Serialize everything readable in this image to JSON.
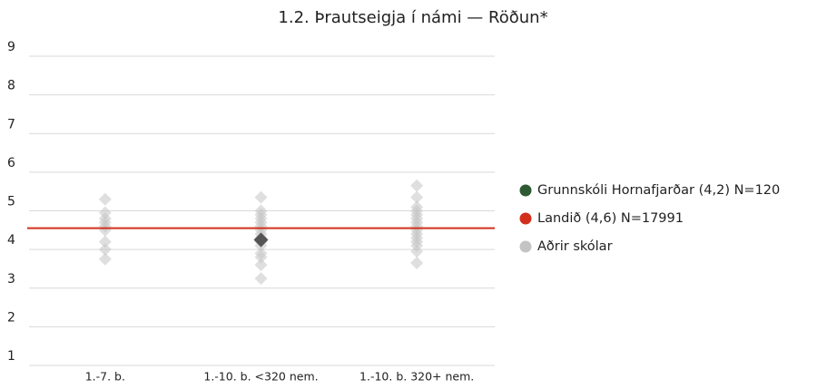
{
  "chart_data": {
    "type": "scatter",
    "title": "1.2. Þrautseigja í námi — Röðun*",
    "categories": [
      "1.-7. b.",
      "1.-10. b. <320 nem.",
      "1.-10. b. 320+ nem."
    ],
    "ylim": [
      1,
      9
    ],
    "yticks": [
      1,
      2,
      3,
      4,
      5,
      6,
      7,
      8,
      9
    ],
    "grid": true,
    "legend": "right",
    "series": [
      {
        "name": "Grunnskóli Hornafjarðar (4,2) N=120",
        "color": "#2e5a33",
        "marker_color": "#555555",
        "values": [
          null,
          4.25,
          null
        ]
      },
      {
        "name": "Landið (4,6) N=17991",
        "color": "#d2301c",
        "value": 4.55
      },
      {
        "name": "Aðrir skólar",
        "color": "#c4c4c4",
        "values": [
          [
            5.3,
            4.95,
            4.8,
            4.7,
            4.6,
            4.5,
            4.2,
            4.0,
            3.75
          ],
          [
            5.35,
            5.0,
            4.9,
            4.8,
            4.7,
            4.6,
            4.5,
            4.4,
            4.3,
            4.2,
            4.1,
            3.9,
            3.8,
            3.6,
            3.25
          ],
          [
            5.65,
            5.35,
            5.1,
            5.0,
            4.9,
            4.8,
            4.7,
            4.6,
            4.5,
            4.4,
            4.3,
            4.2,
            4.1,
            3.95,
            3.65
          ]
        ]
      }
    ]
  }
}
